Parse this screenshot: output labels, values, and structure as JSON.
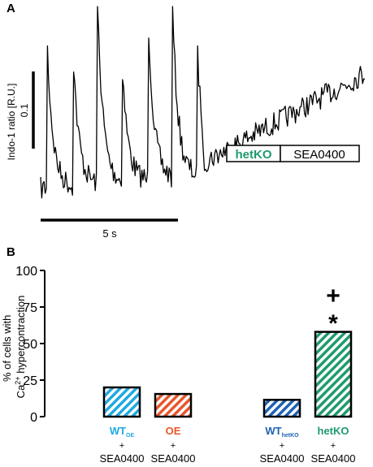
{
  "figure": {
    "panel_a_letter": "A",
    "panel_b_letter": "B"
  },
  "panel_a": {
    "ylabel": "Indo-1 ratio [R.U.]",
    "scale_y_label": "0.1",
    "scale_x_label": "5 s",
    "condition_box": {
      "label_green": "hetKO",
      "label_white": "SEA0400",
      "green_color": "#1e9b6e"
    }
  },
  "chart_data": {
    "type": "bar",
    "categories": [
      "WT_OE + SEA0400",
      "OE + SEA0400",
      "WT_hetKO + SEA0400",
      "hetKO + SEA0400"
    ],
    "values": [
      20,
      15.5,
      11.5,
      58
    ],
    "ylabel": "% of cells with Ca2+ hypercontraction",
    "ylim": [
      0,
      100
    ],
    "yticks": [
      0,
      25,
      50,
      75,
      100
    ],
    "legend": [],
    "significance_markers": {
      "bar_index": 3,
      "symbols": [
        "+",
        "*"
      ]
    },
    "bar_colors": [
      "#1fa9e1",
      "#e8552a",
      "#1d63b5",
      "#1e9b6e"
    ],
    "x_labels": [
      {
        "main": "WT",
        "sub": "OE",
        "plus": "+",
        "drug": "SEA0400",
        "color": "#1fa9e1"
      },
      {
        "main": "OE",
        "sub": "",
        "plus": "+",
        "drug": "SEA0400",
        "color": "#e8552a"
      },
      {
        "main": "WT",
        "sub": "hetKO",
        "plus": "+",
        "drug": "SEA0400",
        "color": "#1d63b5"
      },
      {
        "main": "hetKO",
        "sub": "",
        "plus": "+",
        "drug": "SEA0400",
        "color": "#1e9b6e"
      }
    ]
  }
}
